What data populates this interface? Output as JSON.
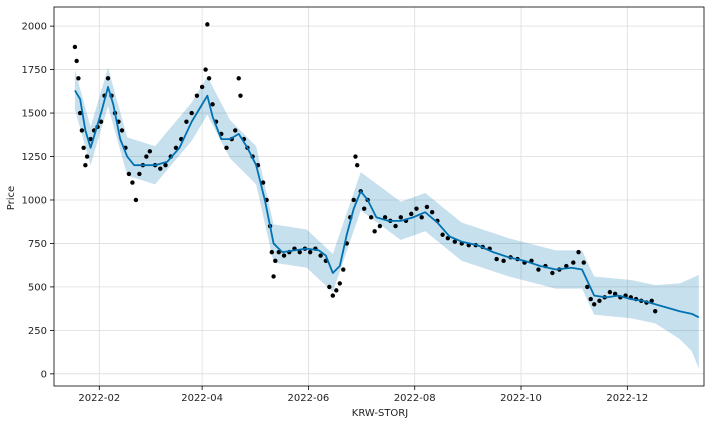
{
  "chart_data": {
    "type": "scatter",
    "title": "",
    "xlabel": "KRW-STORJ",
    "ylabel": "Price",
    "x_ticks": [
      "2022-02",
      "2022-04",
      "2022-06",
      "2022-08",
      "2022-10",
      "2022-12"
    ],
    "y_ticks": [
      0,
      250,
      500,
      750,
      1000,
      1250,
      1500,
      1750,
      2000
    ],
    "xlim": [
      "2022-01-06",
      "2023-01-14"
    ],
    "ylim": [
      -70,
      2110
    ],
    "grid": true,
    "colors": {
      "observed": "#000000",
      "forecast": "#0072B2",
      "uncertainty": "#0072B2"
    },
    "series": [
      {
        "kind": "observed",
        "points": [
          [
            "2022-01-18",
            1880
          ],
          [
            "2022-01-19",
            1800
          ],
          [
            "2022-01-20",
            1700
          ],
          [
            "2022-01-21",
            1500
          ],
          [
            "2022-01-22",
            1400
          ],
          [
            "2022-01-23",
            1300
          ],
          [
            "2022-01-24",
            1200
          ],
          [
            "2022-01-25",
            1250
          ],
          [
            "2022-01-27",
            1350
          ],
          [
            "2022-01-29",
            1400
          ],
          [
            "2022-01-31",
            1420
          ],
          [
            "2022-02-02",
            1450
          ],
          [
            "2022-02-04",
            1600
          ],
          [
            "2022-02-06",
            1700
          ],
          [
            "2022-02-08",
            1600
          ],
          [
            "2022-02-10",
            1500
          ],
          [
            "2022-02-12",
            1450
          ],
          [
            "2022-02-14",
            1400
          ],
          [
            "2022-02-16",
            1300
          ],
          [
            "2022-02-18",
            1150
          ],
          [
            "2022-02-20",
            1100
          ],
          [
            "2022-02-22",
            1000
          ],
          [
            "2022-02-24",
            1150
          ],
          [
            "2022-02-26",
            1200
          ],
          [
            "2022-02-28",
            1250
          ],
          [
            "2022-03-02",
            1280
          ],
          [
            "2022-03-05",
            1200
          ],
          [
            "2022-03-08",
            1180
          ],
          [
            "2022-03-11",
            1200
          ],
          [
            "2022-03-14",
            1250
          ],
          [
            "2022-03-17",
            1300
          ],
          [
            "2022-03-20",
            1350
          ],
          [
            "2022-03-23",
            1450
          ],
          [
            "2022-03-26",
            1500
          ],
          [
            "2022-03-29",
            1600
          ],
          [
            "2022-04-01",
            1650
          ],
          [
            "2022-04-03",
            1750
          ],
          [
            "2022-04-04",
            2010
          ],
          [
            "2022-04-05",
            1700
          ],
          [
            "2022-04-07",
            1550
          ],
          [
            "2022-04-09",
            1450
          ],
          [
            "2022-04-12",
            1380
          ],
          [
            "2022-04-15",
            1300
          ],
          [
            "2022-04-18",
            1350
          ],
          [
            "2022-04-20",
            1400
          ],
          [
            "2022-04-22",
            1700
          ],
          [
            "2022-04-23",
            1600
          ],
          [
            "2022-04-25",
            1350
          ],
          [
            "2022-04-27",
            1300
          ],
          [
            "2022-04-30",
            1250
          ],
          [
            "2022-05-03",
            1200
          ],
          [
            "2022-05-06",
            1100
          ],
          [
            "2022-05-08",
            1000
          ],
          [
            "2022-05-10",
            850
          ],
          [
            "2022-05-11",
            700
          ],
          [
            "2022-05-12",
            560
          ],
          [
            "2022-05-13",
            650
          ],
          [
            "2022-05-15",
            700
          ],
          [
            "2022-05-18",
            680
          ],
          [
            "2022-05-21",
            700
          ],
          [
            "2022-05-24",
            720
          ],
          [
            "2022-05-27",
            700
          ],
          [
            "2022-05-30",
            720
          ],
          [
            "2022-06-02",
            700
          ],
          [
            "2022-06-05",
            720
          ],
          [
            "2022-06-08",
            680
          ],
          [
            "2022-06-11",
            650
          ],
          [
            "2022-06-13",
            500
          ],
          [
            "2022-06-15",
            450
          ],
          [
            "2022-06-17",
            480
          ],
          [
            "2022-06-19",
            520
          ],
          [
            "2022-06-21",
            600
          ],
          [
            "2022-06-23",
            750
          ],
          [
            "2022-06-25",
            900
          ],
          [
            "2022-06-27",
            1000
          ],
          [
            "2022-06-28",
            1250
          ],
          [
            "2022-06-29",
            1200
          ],
          [
            "2022-07-01",
            1050
          ],
          [
            "2022-07-03",
            950
          ],
          [
            "2022-07-05",
            1000
          ],
          [
            "2022-07-07",
            900
          ],
          [
            "2022-07-09",
            820
          ],
          [
            "2022-07-12",
            850
          ],
          [
            "2022-07-15",
            900
          ],
          [
            "2022-07-18",
            880
          ],
          [
            "2022-07-21",
            850
          ],
          [
            "2022-07-24",
            900
          ],
          [
            "2022-07-27",
            880
          ],
          [
            "2022-07-30",
            920
          ],
          [
            "2022-08-02",
            950
          ],
          [
            "2022-08-05",
            900
          ],
          [
            "2022-08-08",
            960
          ],
          [
            "2022-08-11",
            930
          ],
          [
            "2022-08-14",
            880
          ],
          [
            "2022-08-17",
            800
          ],
          [
            "2022-08-20",
            780
          ],
          [
            "2022-08-24",
            760
          ],
          [
            "2022-08-28",
            750
          ],
          [
            "2022-09-01",
            740
          ],
          [
            "2022-09-05",
            740
          ],
          [
            "2022-09-09",
            730
          ],
          [
            "2022-09-13",
            720
          ],
          [
            "2022-09-17",
            660
          ],
          [
            "2022-09-21",
            650
          ],
          [
            "2022-09-25",
            670
          ],
          [
            "2022-09-29",
            660
          ],
          [
            "2022-10-03",
            640
          ],
          [
            "2022-10-07",
            650
          ],
          [
            "2022-10-11",
            600
          ],
          [
            "2022-10-15",
            620
          ],
          [
            "2022-10-19",
            580
          ],
          [
            "2022-10-23",
            600
          ],
          [
            "2022-10-27",
            620
          ],
          [
            "2022-10-31",
            640
          ],
          [
            "2022-11-03",
            700
          ],
          [
            "2022-11-06",
            640
          ],
          [
            "2022-11-08",
            500
          ],
          [
            "2022-11-10",
            430
          ],
          [
            "2022-11-12",
            400
          ],
          [
            "2022-11-15",
            420
          ],
          [
            "2022-11-18",
            440
          ],
          [
            "2022-11-21",
            470
          ],
          [
            "2022-11-24",
            460
          ],
          [
            "2022-11-27",
            440
          ],
          [
            "2022-11-30",
            450
          ],
          [
            "2022-12-03",
            440
          ],
          [
            "2022-12-06",
            430
          ],
          [
            "2022-12-09",
            420
          ],
          [
            "2022-12-12",
            410
          ],
          [
            "2022-12-15",
            420
          ],
          [
            "2022-12-17",
            360
          ]
        ]
      },
      {
        "kind": "forecast",
        "points": [
          [
            "2022-01-18",
            1630
          ],
          [
            "2022-01-21",
            1580
          ],
          [
            "2022-01-24",
            1400
          ],
          [
            "2022-01-27",
            1300
          ],
          [
            "2022-01-30",
            1400
          ],
          [
            "2022-02-02",
            1500
          ],
          [
            "2022-02-06",
            1650
          ],
          [
            "2022-02-09",
            1550
          ],
          [
            "2022-02-13",
            1350
          ],
          [
            "2022-02-17",
            1250
          ],
          [
            "2022-02-21",
            1200
          ],
          [
            "2022-02-26",
            1200
          ],
          [
            "2022-03-05",
            1200
          ],
          [
            "2022-03-12",
            1220
          ],
          [
            "2022-03-19",
            1300
          ],
          [
            "2022-03-26",
            1450
          ],
          [
            "2022-04-01",
            1550
          ],
          [
            "2022-04-04",
            1600
          ],
          [
            "2022-04-07",
            1480
          ],
          [
            "2022-04-12",
            1350
          ],
          [
            "2022-04-17",
            1350
          ],
          [
            "2022-04-22",
            1380
          ],
          [
            "2022-04-27",
            1300
          ],
          [
            "2022-05-02",
            1200
          ],
          [
            "2022-05-07",
            1000
          ],
          [
            "2022-05-12",
            750
          ],
          [
            "2022-05-17",
            700
          ],
          [
            "2022-05-24",
            710
          ],
          [
            "2022-05-31",
            720
          ],
          [
            "2022-06-07",
            710
          ],
          [
            "2022-06-11",
            680
          ],
          [
            "2022-06-15",
            580
          ],
          [
            "2022-06-19",
            620
          ],
          [
            "2022-06-23",
            800
          ],
          [
            "2022-06-27",
            950
          ],
          [
            "2022-07-01",
            1050
          ],
          [
            "2022-07-05",
            1000
          ],
          [
            "2022-07-10",
            900
          ],
          [
            "2022-07-17",
            880
          ],
          [
            "2022-07-24",
            880
          ],
          [
            "2022-07-31",
            900
          ],
          [
            "2022-08-07",
            930
          ],
          [
            "2022-08-14",
            870
          ],
          [
            "2022-08-21",
            790
          ],
          [
            "2022-08-28",
            760
          ],
          [
            "2022-09-06",
            740
          ],
          [
            "2022-09-15",
            700
          ],
          [
            "2022-09-24",
            670
          ],
          [
            "2022-10-03",
            650
          ],
          [
            "2022-10-12",
            620
          ],
          [
            "2022-10-21",
            600
          ],
          [
            "2022-10-30",
            610
          ],
          [
            "2022-11-05",
            600
          ],
          [
            "2022-11-12",
            450
          ],
          [
            "2022-11-19",
            440
          ],
          [
            "2022-11-26",
            450
          ],
          [
            "2022-12-03",
            430
          ],
          [
            "2022-12-10",
            420
          ],
          [
            "2022-12-17",
            400
          ],
          [
            "2022-12-24",
            380
          ],
          [
            "2022-12-31",
            360
          ],
          [
            "2023-01-07",
            345
          ],
          [
            "2023-01-11",
            325
          ]
        ]
      },
      {
        "kind": "uncertainty",
        "points": [
          [
            "2022-01-18",
            1520,
            1750
          ],
          [
            "2022-01-27",
            1200,
            1420
          ],
          [
            "2022-02-06",
            1540,
            1760
          ],
          [
            "2022-02-17",
            1140,
            1360
          ],
          [
            "2022-03-05",
            1090,
            1310
          ],
          [
            "2022-03-26",
            1340,
            1560
          ],
          [
            "2022-04-04",
            1490,
            1710
          ],
          [
            "2022-04-17",
            1240,
            1460
          ],
          [
            "2022-05-02",
            1090,
            1310
          ],
          [
            "2022-05-12",
            640,
            860
          ],
          [
            "2022-05-31",
            610,
            830
          ],
          [
            "2022-06-15",
            470,
            690
          ],
          [
            "2022-07-01",
            940,
            1160
          ],
          [
            "2022-07-24",
            770,
            990
          ],
          [
            "2022-08-07",
            820,
            1040
          ],
          [
            "2022-08-28",
            650,
            870
          ],
          [
            "2022-09-24",
            560,
            780
          ],
          [
            "2022-10-21",
            490,
            710
          ],
          [
            "2022-11-05",
            490,
            710
          ],
          [
            "2022-11-12",
            340,
            560
          ],
          [
            "2022-12-03",
            320,
            540
          ],
          [
            "2022-12-17",
            290,
            510
          ],
          [
            "2022-12-31",
            200,
            520
          ],
          [
            "2023-01-07",
            130,
            550
          ],
          [
            "2023-01-11",
            30,
            570
          ]
        ]
      }
    ]
  }
}
